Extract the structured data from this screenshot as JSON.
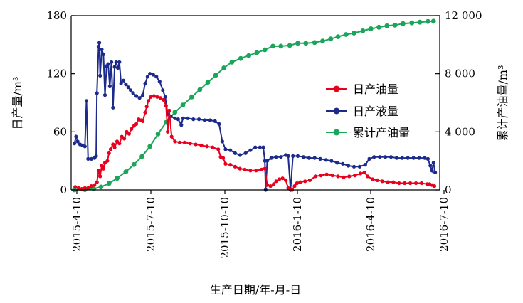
{
  "chart_data": {
    "type": "line",
    "title": "",
    "xlabel": "生产日期/年-月-日",
    "ylabel": "日产量/m³",
    "y2label": "累计产油量/m³",
    "x_ticks": [
      "2015-4-10",
      "2015-7-10",
      "2015-10-10",
      "2016-1-10",
      "2016-4-10",
      "2016-7-10"
    ],
    "ylim": [
      0,
      180
    ],
    "y_ticks": [
      "0",
      "60",
      "120",
      "180"
    ],
    "y2lim": [
      0,
      12000
    ],
    "y2_ticks": [
      "0",
      "4 000",
      "8 000",
      "12 000"
    ],
    "legend_position": "right-center",
    "series": [
      {
        "name": "日产油量",
        "axis": "left",
        "color": "#e8001c",
        "marker": "circle",
        "points": [
          [
            "2015-04-08",
            3
          ],
          [
            "2015-04-12",
            2
          ],
          [
            "2015-04-16",
            1
          ],
          [
            "2015-04-20",
            2
          ],
          [
            "2015-04-24",
            2
          ],
          [
            "2015-04-28",
            4
          ],
          [
            "2015-05-02",
            5
          ],
          [
            "2015-05-05",
            8
          ],
          [
            "2015-05-07",
            20
          ],
          [
            "2015-05-09",
            14
          ],
          [
            "2015-05-11",
            25
          ],
          [
            "2015-05-13",
            22
          ],
          [
            "2015-05-15",
            28
          ],
          [
            "2015-05-18",
            30
          ],
          [
            "2015-05-20",
            38
          ],
          [
            "2015-05-22",
            42
          ],
          [
            "2015-05-25",
            47
          ],
          [
            "2015-05-27",
            44
          ],
          [
            "2015-05-30",
            50
          ],
          [
            "2015-06-02",
            48
          ],
          [
            "2015-06-05",
            55
          ],
          [
            "2015-06-08",
            53
          ],
          [
            "2015-06-11",
            60
          ],
          [
            "2015-06-14",
            58
          ],
          [
            "2015-06-17",
            63
          ],
          [
            "2015-06-20",
            66
          ],
          [
            "2015-06-23",
            68
          ],
          [
            "2015-06-26",
            73
          ],
          [
            "2015-06-29",
            72
          ],
          [
            "2015-07-01",
            71
          ],
          [
            "2015-07-04",
            80
          ],
          [
            "2015-07-06",
            86
          ],
          [
            "2015-07-08",
            92
          ],
          [
            "2015-07-11",
            96
          ],
          [
            "2015-07-15",
            97
          ],
          [
            "2015-07-19",
            96
          ],
          [
            "2015-07-23",
            95
          ],
          [
            "2015-07-27",
            93
          ],
          [
            "2015-07-30",
            87
          ],
          [
            "2015-08-01",
            60
          ],
          [
            "2015-08-03",
            82
          ],
          [
            "2015-08-06",
            55
          ],
          [
            "2015-08-10",
            50
          ],
          [
            "2015-08-16",
            49
          ],
          [
            "2015-08-22",
            49
          ],
          [
            "2015-08-29",
            48
          ],
          [
            "2015-09-05",
            47
          ],
          [
            "2015-09-12",
            46
          ],
          [
            "2015-09-19",
            45
          ],
          [
            "2015-09-26",
            44
          ],
          [
            "2015-10-03",
            42
          ],
          [
            "2015-10-06",
            34
          ],
          [
            "2015-10-09",
            33
          ],
          [
            "2015-10-12",
            27
          ],
          [
            "2015-10-18",
            26
          ],
          [
            "2015-10-24",
            24
          ],
          [
            "2015-10-30",
            22
          ],
          [
            "2015-11-05",
            21
          ],
          [
            "2015-11-12",
            20
          ],
          [
            "2015-11-19",
            20
          ],
          [
            "2015-11-26",
            21
          ],
          [
            "2015-11-30",
            22
          ],
          [
            "2015-12-03",
            5
          ],
          [
            "2015-12-07",
            4
          ],
          [
            "2015-12-11",
            6
          ],
          [
            "2015-12-14",
            9
          ],
          [
            "2015-12-18",
            11
          ],
          [
            "2015-12-22",
            12
          ],
          [
            "2015-12-26",
            10
          ],
          [
            "2015-12-29",
            2
          ],
          [
            "2016-01-03",
            0
          ],
          [
            "2016-01-06",
            4
          ],
          [
            "2016-01-09",
            7
          ],
          [
            "2016-01-13",
            8
          ],
          [
            "2016-01-19",
            9
          ],
          [
            "2016-01-25",
            10
          ],
          [
            "2016-02-01",
            14
          ],
          [
            "2016-02-08",
            15
          ],
          [
            "2016-02-15",
            16
          ],
          [
            "2016-02-22",
            15
          ],
          [
            "2016-02-29",
            14
          ],
          [
            "2016-03-07",
            13
          ],
          [
            "2016-03-14",
            14
          ],
          [
            "2016-03-21",
            15
          ],
          [
            "2016-03-28",
            17
          ],
          [
            "2016-04-02",
            18
          ],
          [
            "2016-04-06",
            14
          ],
          [
            "2016-04-12",
            11
          ],
          [
            "2016-04-18",
            10
          ],
          [
            "2016-04-24",
            9
          ],
          [
            "2016-05-01",
            8
          ],
          [
            "2016-05-08",
            8
          ],
          [
            "2016-05-15",
            7
          ],
          [
            "2016-05-22",
            7
          ],
          [
            "2016-05-29",
            7
          ],
          [
            "2016-06-05",
            7
          ],
          [
            "2016-06-12",
            7
          ],
          [
            "2016-06-19",
            6
          ],
          [
            "2016-06-22",
            6
          ],
          [
            "2016-06-25",
            5
          ],
          [
            "2016-06-28",
            4
          ]
        ]
      },
      {
        "name": "日产液量",
        "axis": "left",
        "color": "#1c2a8c",
        "marker": "circle",
        "points": [
          [
            "2015-04-07",
            48
          ],
          [
            "2015-04-09",
            55
          ],
          [
            "2015-04-11",
            50
          ],
          [
            "2015-04-14",
            47
          ],
          [
            "2015-04-17",
            46
          ],
          [
            "2015-04-20",
            45
          ],
          [
            "2015-04-22",
            92
          ],
          [
            "2015-04-24",
            32
          ],
          [
            "2015-04-28",
            32
          ],
          [
            "2015-05-02",
            33
          ],
          [
            "2015-05-04",
            35
          ],
          [
            "2015-05-05",
            100
          ],
          [
            "2015-05-07",
            148
          ],
          [
            "2015-05-08",
            152
          ],
          [
            "2015-05-09",
            118
          ],
          [
            "2015-05-11",
            145
          ],
          [
            "2015-05-13",
            140
          ],
          [
            "2015-05-15",
            98
          ],
          [
            "2015-05-17",
            128
          ],
          [
            "2015-05-19",
            130
          ],
          [
            "2015-05-21",
            107
          ],
          [
            "2015-05-23",
            132
          ],
          [
            "2015-05-25",
            85
          ],
          [
            "2015-05-27",
            127
          ],
          [
            "2015-05-29",
            132
          ],
          [
            "2015-05-31",
            126
          ],
          [
            "2015-06-02",
            132
          ],
          [
            "2015-06-04",
            110
          ],
          [
            "2015-06-07",
            113
          ],
          [
            "2015-06-10",
            109
          ],
          [
            "2015-06-13",
            106
          ],
          [
            "2015-06-16",
            103
          ],
          [
            "2015-06-19",
            100
          ],
          [
            "2015-06-23",
            97
          ],
          [
            "2015-06-27",
            95
          ],
          [
            "2015-07-01",
            98
          ],
          [
            "2015-07-04",
            110
          ],
          [
            "2015-07-07",
            117
          ],
          [
            "2015-07-10",
            120
          ],
          [
            "2015-07-14",
            119
          ],
          [
            "2015-07-18",
            117
          ],
          [
            "2015-07-22",
            112
          ],
          [
            "2015-07-26",
            103
          ],
          [
            "2015-07-29",
            96
          ],
          [
            "2015-08-01",
            78
          ],
          [
            "2015-08-05",
            76
          ],
          [
            "2015-08-10",
            74
          ],
          [
            "2015-08-14",
            73
          ],
          [
            "2015-08-18",
            67
          ],
          [
            "2015-08-20",
            74
          ],
          [
            "2015-08-26",
            74
          ],
          [
            "2015-09-02",
            73
          ],
          [
            "2015-09-09",
            73
          ],
          [
            "2015-09-16",
            72
          ],
          [
            "2015-09-23",
            72
          ],
          [
            "2015-09-29",
            71
          ],
          [
            "2015-10-04",
            68
          ],
          [
            "2015-10-08",
            50
          ],
          [
            "2015-10-12",
            42
          ],
          [
            "2015-10-18",
            41
          ],
          [
            "2015-10-24",
            38
          ],
          [
            "2015-10-30",
            36
          ],
          [
            "2015-11-06",
            38
          ],
          [
            "2015-11-12",
            41
          ],
          [
            "2015-11-18",
            44
          ],
          [
            "2015-11-24",
            44
          ],
          [
            "2015-11-28",
            44
          ],
          [
            "2015-11-30",
            30
          ],
          [
            "2015-12-01",
            0
          ],
          [
            "2015-12-03",
            30
          ],
          [
            "2015-12-08",
            33
          ],
          [
            "2015-12-14",
            34
          ],
          [
            "2015-12-20",
            34
          ],
          [
            "2015-12-26",
            36
          ],
          [
            "2015-12-29",
            35
          ],
          [
            "2016-01-01",
            0
          ],
          [
            "2016-01-04",
            35
          ],
          [
            "2016-01-10",
            35
          ],
          [
            "2016-01-17",
            34
          ],
          [
            "2016-01-24",
            33
          ],
          [
            "2016-01-31",
            33
          ],
          [
            "2016-02-07",
            32
          ],
          [
            "2016-02-14",
            31
          ],
          [
            "2016-02-21",
            30
          ],
          [
            "2016-02-28",
            28
          ],
          [
            "2016-03-06",
            27
          ],
          [
            "2016-03-13",
            25
          ],
          [
            "2016-03-20",
            24
          ],
          [
            "2016-03-27",
            24
          ],
          [
            "2016-04-03",
            26
          ],
          [
            "2016-04-08",
            32
          ],
          [
            "2016-04-14",
            34
          ],
          [
            "2016-04-21",
            34
          ],
          [
            "2016-04-28",
            34
          ],
          [
            "2016-05-05",
            34
          ],
          [
            "2016-05-12",
            33
          ],
          [
            "2016-05-19",
            33
          ],
          [
            "2016-05-26",
            33
          ],
          [
            "2016-06-02",
            33
          ],
          [
            "2016-06-09",
            33
          ],
          [
            "2016-06-16",
            33
          ],
          [
            "2016-06-20",
            32
          ],
          [
            "2016-06-23",
            25
          ],
          [
            "2016-06-25",
            20
          ],
          [
            "2016-06-27",
            28
          ],
          [
            "2016-06-29",
            18
          ]
        ]
      },
      {
        "name": "累计产油量",
        "axis": "right",
        "color": "#1aa55a",
        "marker": "circle",
        "points": [
          [
            "2015-04-07",
            0
          ],
          [
            "2015-04-20",
            20
          ],
          [
            "2015-05-01",
            80
          ],
          [
            "2015-05-10",
            200
          ],
          [
            "2015-05-20",
            450
          ],
          [
            "2015-05-30",
            800
          ],
          [
            "2015-06-10",
            1250
          ],
          [
            "2015-06-20",
            1750
          ],
          [
            "2015-06-30",
            2300
          ],
          [
            "2015-07-10",
            3000
          ],
          [
            "2015-07-20",
            3850
          ],
          [
            "2015-07-30",
            4650
          ],
          [
            "2015-08-10",
            5350
          ],
          [
            "2015-08-20",
            5850
          ],
          [
            "2015-08-31",
            6400
          ],
          [
            "2015-09-10",
            6900
          ],
          [
            "2015-09-20",
            7400
          ],
          [
            "2015-09-30",
            7900
          ],
          [
            "2015-10-10",
            8400
          ],
          [
            "2015-10-20",
            8800
          ],
          [
            "2015-10-31",
            9050
          ],
          [
            "2015-11-10",
            9250
          ],
          [
            "2015-11-20",
            9450
          ],
          [
            "2015-11-30",
            9650
          ],
          [
            "2015-12-10",
            9900
          ],
          [
            "2015-12-20",
            9900
          ],
          [
            "2015-12-31",
            9950
          ],
          [
            "2016-01-10",
            10100
          ],
          [
            "2016-01-20",
            10100
          ],
          [
            "2016-01-31",
            10150
          ],
          [
            "2016-02-10",
            10250
          ],
          [
            "2016-02-20",
            10400
          ],
          [
            "2016-02-29",
            10550
          ],
          [
            "2016-03-10",
            10700
          ],
          [
            "2016-03-20",
            10800
          ],
          [
            "2016-03-31",
            10950
          ],
          [
            "2016-04-10",
            11100
          ],
          [
            "2016-04-20",
            11200
          ],
          [
            "2016-04-30",
            11300
          ],
          [
            "2016-05-10",
            11350
          ],
          [
            "2016-05-20",
            11450
          ],
          [
            "2016-05-31",
            11500
          ],
          [
            "2016-06-10",
            11550
          ],
          [
            "2016-06-20",
            11600
          ],
          [
            "2016-06-27",
            11620
          ]
        ]
      }
    ]
  }
}
